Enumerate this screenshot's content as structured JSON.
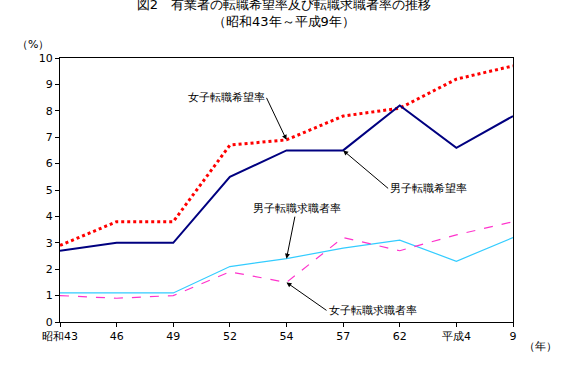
{
  "chart_data": {
    "type": "line",
    "title": "図2　有業者の転職希望率及び転職求職者率の推移",
    "subtitle": "（昭和43年～平成9年）",
    "x_label": "（年）",
    "y_label": "（%）",
    "categories": [
      "昭和43",
      "46",
      "49",
      "52",
      "54",
      "57",
      "62",
      "平成4",
      "9"
    ],
    "series": [
      {
        "name": "女子転職希望率",
        "color": "#ff0000",
        "line_style": "dotted",
        "values": [
          2.9,
          3.8,
          3.8,
          6.7,
          6.9,
          7.8,
          8.1,
          9.2,
          9.7
        ]
      },
      {
        "name": "男子転職希望率",
        "color": "#000080",
        "line_style": "solid",
        "values": [
          2.7,
          3.0,
          3.0,
          5.5,
          6.5,
          6.5,
          8.2,
          6.6,
          7.8
        ]
      },
      {
        "name": "男子転職求職者率",
        "color": "#33ccff",
        "line_style": "solid",
        "values": [
          1.1,
          1.1,
          1.1,
          2.1,
          2.4,
          2.8,
          3.1,
          2.3,
          3.2
        ]
      },
      {
        "name": "女子転職求職者率",
        "color": "#ff33cc",
        "line_style": "dashed",
        "values": [
          1.0,
          0.9,
          1.0,
          1.9,
          1.5,
          3.2,
          2.7,
          3.3,
          3.8
        ]
      }
    ],
    "ylim": [
      0,
      10
    ],
    "yticks": [
      0,
      1,
      2,
      3,
      4,
      5,
      6,
      7,
      8,
      9,
      10
    ],
    "grid": false,
    "legend": "none"
  }
}
